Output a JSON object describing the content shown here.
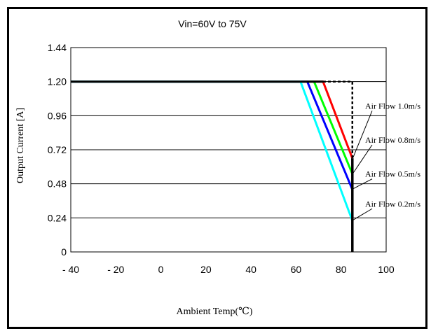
{
  "chart_data": {
    "type": "line",
    "title": "Vin=60V to 75V",
    "xlabel": "Ambient Temp(℃)",
    "ylabel": "Output Current [A]",
    "xlim": [
      -40,
      100
    ],
    "ylim": [
      0,
      1.44
    ],
    "x_ticks": [
      "- 40",
      "- 20",
      "0",
      "20",
      "40",
      "60",
      "80",
      "100"
    ],
    "x_tick_values": [
      -40,
      -20,
      0,
      20,
      40,
      60,
      80,
      100
    ],
    "y_ticks": [
      "0",
      "0.24",
      "0.48",
      "0.72",
      "0.96",
      "1.20",
      "1.44"
    ],
    "y_tick_values": [
      0,
      0.24,
      0.48,
      0.72,
      0.96,
      1.2,
      1.44
    ],
    "grid": "horizontal",
    "series": [
      {
        "name": "Air Flow 1.0m/s",
        "color": "#ff0000",
        "points": [
          [
            -40,
            1.2
          ],
          [
            72,
            1.2
          ],
          [
            85,
            0.66
          ]
        ]
      },
      {
        "name": "Air Flow 0.8m/s",
        "color": "#00ff00",
        "points": [
          [
            -40,
            1.2
          ],
          [
            68,
            1.2
          ],
          [
            85,
            0.55
          ]
        ]
      },
      {
        "name": "Air Flow 0.5m/s",
        "color": "#0000ff",
        "points": [
          [
            -40,
            1.2
          ],
          [
            65,
            1.2
          ],
          [
            85,
            0.44
          ]
        ]
      },
      {
        "name": "Air Flow 0.2m/s",
        "color": "#00ffff",
        "points": [
          [
            -40,
            1.2
          ],
          [
            62,
            1.2
          ],
          [
            85,
            0.22
          ]
        ]
      }
    ],
    "limit_line": {
      "color": "#000000",
      "points": [
        [
          -40,
          1.2
        ],
        [
          72,
          1.2
        ]
      ]
    },
    "limit_dashed": {
      "color": "#000000",
      "points": [
        [
          72,
          1.2
        ],
        [
          85,
          1.2
        ],
        [
          85,
          0.66
        ]
      ]
    },
    "limit_vertical": {
      "color": "#000000",
      "points": [
        [
          85,
          0.66
        ],
        [
          85,
          0
        ]
      ]
    },
    "annotations": [
      {
        "text": "Air Flow 1.0m/s",
        "target": [
          85,
          0.66
        ],
        "label_y": 0.96
      },
      {
        "text": "Air Flow 0.8m/s",
        "target": [
          85,
          0.55
        ],
        "label_y": 0.72
      },
      {
        "text": "Air Flow 0.5m/s",
        "target": [
          85,
          0.44
        ],
        "label_y": 0.48
      },
      {
        "text": "Air Flow 0.2m/s",
        "target": [
          85,
          0.22
        ],
        "label_y": 0.27
      }
    ]
  }
}
